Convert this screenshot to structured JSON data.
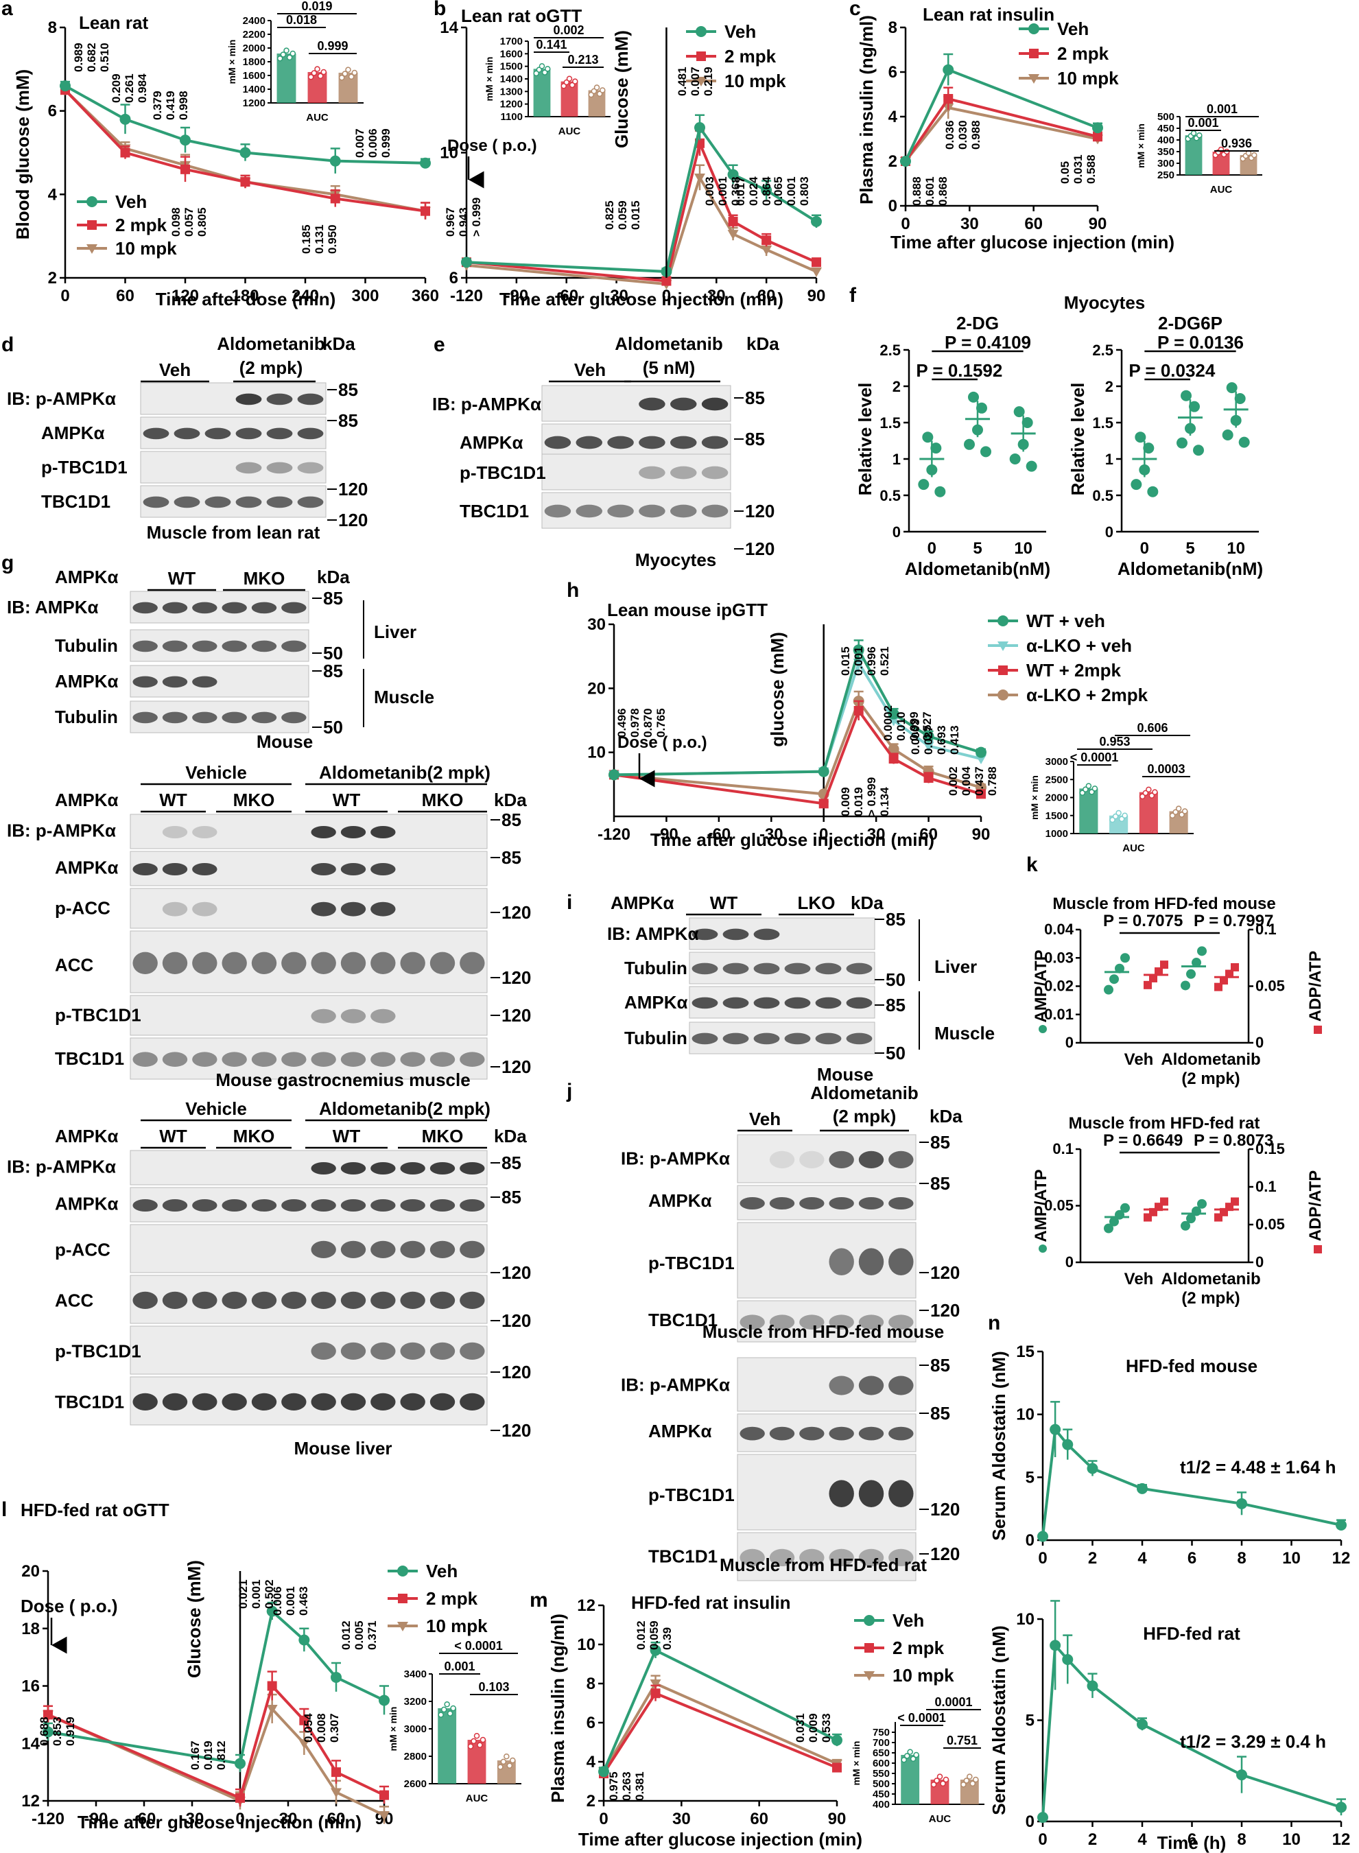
{
  "colors": {
    "veh": "#2e9e76",
    "mpk2": "#d9333f",
    "mpk10": "#b38a6a",
    "pblue": "#3a96c9",
    "lko": "#7fd0cf",
    "black": "#000000"
  },
  "panel_letters": [
    "a",
    "b",
    "c",
    "d",
    "e",
    "f",
    "g",
    "h",
    "i",
    "j",
    "k",
    "l",
    "m",
    "n"
  ],
  "legend": {
    "veh": "Veh",
    "mpk2": "2 mpk",
    "mpk10": "10 mpk"
  },
  "a": {
    "title": "Lean rat",
    "ylabel": "Blood glucose (mM)",
    "xlabel": "Time after dose (min)",
    "auc_ylabel": "mM × min",
    "auc_label": "AUC",
    "auc_p": [
      "0.018",
      "0.019",
      "0.999"
    ]
  },
  "b": {
    "title": "Lean rat oGTT",
    "ylabel": "Glucose (mM)",
    "xlabel": "Time after glucose injection (min)",
    "dose": "Dose ( p.o.)",
    "auc_ylabel": "mM × min",
    "auc_label": "AUC",
    "auc_p": [
      "0.141",
      "0.002",
      "0.213"
    ]
  },
  "c": {
    "title": "Lean rat insulin",
    "ylabel": "Plasma insulin (ng/ml)",
    "xlabel": "Time after glucose injection (min)",
    "auc_ylabel": "mM × min",
    "auc_label": "AUC",
    "auc_p": [
      "0.001",
      "0.001",
      "0.936"
    ]
  },
  "f": {
    "title": "Myocytes",
    "sub1": "2-DG",
    "sub2": "2-DG6P",
    "ylabel": "Relative level",
    "xlabel": "Aldometanib(nM)",
    "p1a": "P = 0.4109",
    "p1b": "P = 0.1592",
    "p2a": "P = 0.0136",
    "p2b": "P = 0.0324"
  },
  "h": {
    "title": "Lean mouse ipGTT",
    "ylabel": "glucose (mM)",
    "xlabel": "Time after glucose injection (min)",
    "dose": "Dose ( p.o.)",
    "legend": [
      "WT + veh",
      "α-LKO + veh",
      "WT + 2mpk",
      "α-LKO + 2mpk"
    ],
    "auc_ylabel": "mM × min",
    "auc_label": "AUC",
    "auc_p": [
      "< 0.0001",
      "0.953",
      "0.606",
      "0.0003"
    ]
  },
  "k": {
    "title1": "Muscle from HFD-fed mouse",
    "title2": "Muscle from HFD-fed rat",
    "p1a": "P = 0.7075",
    "p1b": "P = 0.7997",
    "p2a": "P = 0.6649",
    "p2b": "P = 0.8073",
    "yl": "AMP/ATP",
    "yr": "ADP/ATP",
    "x1": "Veh",
    "x2": "Aldometanib",
    "x3": "(2 mpk)"
  },
  "l": {
    "title": "HFD-fed rat oGTT",
    "ylabel": "Glucose (mM)",
    "xlabel": "Time after glucose injection (min)",
    "dose": "Dose ( p.o.)",
    "auc_ylabel": "mM × min",
    "auc_label": "AUC",
    "auc_p": [
      "< 0.0001",
      "0.001",
      "0.103"
    ]
  },
  "m": {
    "title": "HFD-fed rat insulin",
    "ylabel": "Plasma insulin (ng/ml)",
    "xlabel": "Time after glucose injection (min)",
    "auc_ylabel": "mM × min",
    "auc_label": "AUC",
    "auc_p": [
      "< 0.0001",
      "0.0001",
      "0.751"
    ]
  },
  "n": {
    "title1": "HFD-fed mouse",
    "title2": "HFD-fed rat",
    "ylabel": "Serum Aldostatin (nM)",
    "xlabel": "Time (h)",
    "t1": "t1/2 = 4.48 ± 1.64 h",
    "t2": "t1/2 = 3.29 ± 0.4 h"
  },
  "blots": {
    "kda": "kDa",
    "ib_pampk": "IB: p-AMPKα",
    "ampk": "AMPKα",
    "ptbc": "p-TBC1D1",
    "tbc": "TBC1D1",
    "pacc": "p-ACC",
    "acc": "ACC",
    "tubulin": "Tubulin",
    "ib_ampk": "IB: AMPKα",
    "veh": "Veh",
    "vehicle": "Vehicle",
    "aldo2": "Aldometanib",
    "aldo2b": "(2 mpk)",
    "aldo5b": "(5 nM)",
    "aldo_2mpk": "Aldometanib(2 mpk)",
    "wt": "WT",
    "mko": "MKO",
    "lko": "LKO",
    "liver": "Liver",
    "muscle": "Muscle",
    "mouse": "Mouse",
    "d_cap": "Muscle from lean rat",
    "e_cap": "Myocytes",
    "g2_cap": "Mouse gastrocnemius muscle",
    "g3_cap": "Mouse liver",
    "j1_cap": "Muscle from HFD-fed mouse",
    "j2_cap": "Muscle from HFD-fed rat"
  },
  "chart_data": [
    {
      "type": "line",
      "panel": "a",
      "title": "Lean rat",
      "xlabel": "Time after dose (min)",
      "ylabel": "Blood glucose (mM)",
      "x": [
        0,
        60,
        120,
        180,
        270,
        360
      ],
      "ylim": [
        2,
        8
      ],
      "series": [
        {
          "name": "Veh",
          "values": [
            6.6,
            5.8,
            5.3,
            5.0,
            4.8,
            4.75
          ]
        },
        {
          "name": "2 mpk",
          "values": [
            6.5,
            5.0,
            4.6,
            4.3,
            3.9,
            3.6
          ]
        },
        {
          "name": "10 mpk",
          "values": [
            6.5,
            5.1,
            4.7,
            4.3,
            4.0,
            3.6
          ]
        }
      ]
    },
    {
      "type": "bar",
      "panel": "a-AUC",
      "categories": [
        "Veh",
        "2 mpk",
        "10 mpk"
      ],
      "values": [
        1920,
        1650,
        1640
      ],
      "ylim": [
        1200,
        2400
      ]
    },
    {
      "type": "line",
      "panel": "b",
      "title": "Lean rat oGTT",
      "xlabel": "Time after glucose injection (min)",
      "ylabel": "Glucose (mM)",
      "x": [
        -120,
        0,
        20,
        40,
        60,
        90
      ],
      "ylim": [
        6,
        14
      ],
      "series": [
        {
          "name": "Veh",
          "values": [
            6.5,
            6.2,
            10.8,
            9.3,
            8.8,
            7.8
          ]
        },
        {
          "name": "2 mpk",
          "values": [
            6.5,
            5.9,
            10.3,
            7.8,
            7.2,
            6.5
          ]
        },
        {
          "name": "10 mpk",
          "values": [
            6.4,
            5.8,
            9.2,
            7.4,
            6.9,
            6.2
          ]
        }
      ]
    },
    {
      "type": "bar",
      "panel": "b-AUC",
      "categories": [
        "Veh",
        "2 mpk",
        "10 mpk"
      ],
      "values": [
        1480,
        1380,
        1310
      ],
      "ylim": [
        1100,
        1700
      ]
    },
    {
      "type": "line",
      "panel": "c",
      "title": "Lean rat insulin",
      "xlabel": "Time after glucose injection (min)",
      "ylabel": "Plasma insulin (ng/ml)",
      "x": [
        0,
        20,
        90
      ],
      "ylim": [
        0,
        8
      ],
      "series": [
        {
          "name": "Veh",
          "values": [
            2.0,
            6.1,
            3.5
          ]
        },
        {
          "name": "2 mpk",
          "values": [
            2.0,
            4.8,
            3.1
          ]
        },
        {
          "name": "10 mpk",
          "values": [
            2.0,
            4.4,
            3.0
          ]
        }
      ]
    },
    {
      "type": "bar",
      "panel": "c-AUC",
      "categories": [
        "Veh",
        "2 mpk",
        "10 mpk"
      ],
      "values": [
        420,
        350,
        335
      ],
      "ylim": [
        250,
        500
      ]
    },
    {
      "type": "scatter",
      "panel": "f-2DG",
      "categories": [
        "0",
        "5",
        "10"
      ],
      "means": [
        1.0,
        1.55,
        1.35
      ],
      "ylim": [
        0,
        2.5
      ]
    },
    {
      "type": "scatter",
      "panel": "f-2DG6P",
      "categories": [
        "0",
        "5",
        "10"
      ],
      "means": [
        1.0,
        1.57,
        1.68
      ],
      "ylim": [
        0,
        2.5
      ]
    },
    {
      "type": "line",
      "panel": "h",
      "title": "Lean mouse ipGTT",
      "xlabel": "Time after glucose injection (min)",
      "ylabel": "glucose (mM)",
      "x": [
        -120,
        0,
        20,
        40,
        60,
        90
      ],
      "ylim": [
        0,
        30
      ],
      "series": [
        {
          "name": "WT + veh",
          "values": [
            6.5,
            7.0,
            26.0,
            16.0,
            12.5,
            10.0
          ]
        },
        {
          "name": "α-LKO + veh",
          "values": [
            6.5,
            7.0,
            24.0,
            15.0,
            11.0,
            9.0
          ]
        },
        {
          "name": "WT + 2mpk",
          "values": [
            6.5,
            2.0,
            16.5,
            9.0,
            6.0,
            3.5
          ]
        },
        {
          "name": "α-LKO + 2mpk",
          "values": [
            6.5,
            3.5,
            18.0,
            10.5,
            7.0,
            4.5
          ]
        }
      ]
    },
    {
      "type": "bar",
      "panel": "h-AUC",
      "categories": [
        "WT + veh",
        "α-LKO + veh",
        "WT + 2mpk",
        "α-LKO + 2mpk"
      ],
      "values": [
        2250,
        1500,
        2150,
        1620
      ],
      "ylim": [
        1000,
        3000
      ]
    },
    {
      "type": "scatter",
      "panel": "k-mouse",
      "series": [
        {
          "name": "AMP/ATP",
          "values": [
            0.025,
            0.027
          ]
        },
        {
          "name": "ADP/ATP",
          "values": [
            0.06,
            0.058
          ]
        }
      ]
    },
    {
      "type": "scatter",
      "panel": "k-rat",
      "series": [
        {
          "name": "AMP/ATP",
          "values": [
            0.04,
            0.043
          ]
        },
        {
          "name": "ADP/ATP",
          "values": [
            0.07,
            0.07
          ]
        }
      ]
    },
    {
      "type": "line",
      "panel": "l",
      "title": "HFD-fed rat oGTT",
      "xlabel": "Time after glucose injection (min)",
      "ylabel": "Glucose (mM)",
      "x": [
        -120,
        0,
        20,
        40,
        60,
        90
      ],
      "ylim": [
        12,
        20
      ],
      "series": [
        {
          "name": "Veh",
          "values": [
            14.4,
            13.3,
            18.6,
            17.6,
            16.3,
            15.5
          ]
        },
        {
          "name": "2 mpk",
          "values": [
            15.0,
            12.1,
            16.0,
            14.8,
            13.0,
            12.2
          ]
        },
        {
          "name": "10 mpk",
          "values": [
            15.0,
            12.0,
            15.2,
            14.0,
            12.3,
            11.5
          ]
        }
      ]
    },
    {
      "type": "bar",
      "panel": "l-AUC",
      "categories": [
        "Veh",
        "2 mpk",
        "10 mpk"
      ],
      "values": [
        3150,
        2920,
        2770
      ],
      "ylim": [
        2600,
        3400
      ]
    },
    {
      "type": "line",
      "panel": "m",
      "title": "HFD-fed rat insulin",
      "xlabel": "Time after glucose injection (min)",
      "ylabel": "Plasma insulin (ng/ml)",
      "x": [
        0,
        20,
        90
      ],
      "ylim": [
        2,
        12
      ],
      "series": [
        {
          "name": "Veh",
          "values": [
            3.5,
            9.7,
            5.1
          ]
        },
        {
          "name": "2 mpk",
          "values": [
            3.4,
            7.5,
            3.7
          ]
        },
        {
          "name": "10 mpk",
          "values": [
            3.5,
            8.0,
            3.9
          ]
        }
      ]
    },
    {
      "type": "bar",
      "panel": "m-AUC",
      "categories": [
        "Veh",
        "2 mpk",
        "10 mpk"
      ],
      "values": [
        640,
        520,
        520
      ],
      "ylim": [
        400,
        800
      ]
    },
    {
      "type": "line",
      "panel": "n-mouse",
      "title": "HFD-fed mouse",
      "xlabel": "Time (h)",
      "ylabel": "Serum Aldostatin (nM)",
      "x": [
        0,
        0.5,
        1,
        2,
        4,
        8,
        12
      ],
      "ylim": [
        0,
        15
      ],
      "series": [
        {
          "values": [
            0.3,
            8.8,
            7.6,
            5.7,
            4.1,
            2.9,
            1.2
          ]
        }
      ]
    },
    {
      "type": "line",
      "panel": "n-rat",
      "title": "HFD-fed rat",
      "xlabel": "Time (h)",
      "ylabel": "Serum Aldostatin (nM)",
      "x": [
        0,
        0.5,
        1,
        2,
        4,
        8,
        12
      ],
      "ylim": [
        0,
        10
      ],
      "series": [
        {
          "values": [
            0.2,
            8.7,
            8.0,
            6.7,
            4.8,
            2.3,
            0.7
          ]
        }
      ]
    }
  ]
}
